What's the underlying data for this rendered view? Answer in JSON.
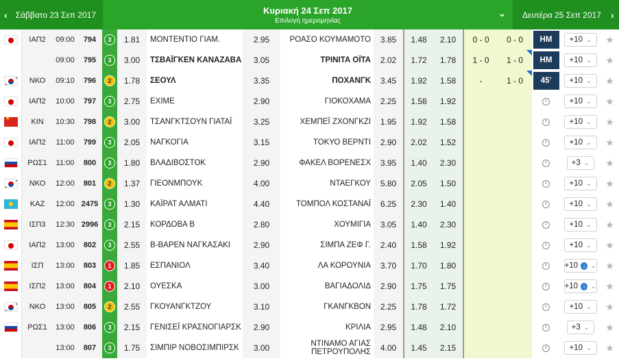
{
  "header": {
    "prev_label": "Σάββατο 23 Σεπ 2017",
    "current_label": "Κυριακή 24 Σεπ 2017",
    "current_sub": "Επιλογή ημερομηνίας",
    "next_label": "Δευτέρα 25 Σεπ 2017",
    "prev_arrow": "‹",
    "next_arrow": "›",
    "chevron": "⌄"
  },
  "rows": [
    {
      "flag": "jp",
      "league": "ΙΑΠ2",
      "time": "09:00",
      "code": "794",
      "count": "3",
      "odd1": "1.81",
      "home": "ΜΟΝΤΕΝΤΙΟ ΓΙΑΜ.",
      "oddx": "2.95",
      "away": "ΡΟΑΣΟ ΚΟΥΜΑΜΟΤΟ",
      "odd2": "3.85",
      "under": "1.48",
      "over": "2.10",
      "score_ht": "0 - 0",
      "score_ft": "0 - 0",
      "status": "HM",
      "more": "+10",
      "more_dl": false,
      "home_bold": false
    },
    {
      "flag": "",
      "league": "",
      "time": "09:00",
      "code": "795",
      "count": "3",
      "odd1": "3.00",
      "home": "ΤΣΒΑΪΓΚΕΝ ΚΑΝΑΖΑΒΑ",
      "oddx": "3.05",
      "away": "ΤΡΙΝΙΤΑ ΟΪΤΑ",
      "odd2": "2.02",
      "under": "1.72",
      "over": "1.78",
      "score_ht": "1 - 0",
      "score_ft": "1 - 0",
      "status": "HM",
      "more": "+10",
      "more_dl": false,
      "home_bold": true
    },
    {
      "flag": "kr",
      "league": "ΝΚΟ",
      "time": "09:10",
      "code": "796",
      "count": "2",
      "odd1": "1.78",
      "home": "ΣΕΟΥΛ",
      "oddx": "3.35",
      "away": "ΠΟΧΑΝΓΚ",
      "odd2": "3.45",
      "under": "1.92",
      "over": "1.58",
      "score_ht": "-",
      "score_ft": "1 - 0",
      "status": "45'",
      "more": "+10",
      "more_dl": false,
      "home_bold": true
    },
    {
      "flag": "jp",
      "league": "ΙΑΠ2",
      "time": "10:00",
      "code": "797",
      "count": "3",
      "odd1": "2.75",
      "home": "ΕΧΙΜΕ",
      "oddx": "2.90",
      "away": "ΓΙΟΚΟΧΑΜΑ",
      "odd2": "2.25",
      "under": "1.58",
      "over": "1.92",
      "score_ht": "",
      "score_ft": "",
      "status": "",
      "more": "+10",
      "more_dl": false,
      "home_bold": false
    },
    {
      "flag": "cn",
      "league": "ΚΙΝ",
      "time": "10:30",
      "code": "798",
      "count": "2",
      "odd1": "3.00",
      "home": "ΤΣΑΝΓΚΤΣΟΥΝ ΓΙΑΤΑΪ",
      "oddx": "3.25",
      "away": "ΧΕΜΠΕΪ ΖΧΟΝΓΚΖΙ",
      "odd2": "1.95",
      "under": "1.92",
      "over": "1.58",
      "score_ht": "",
      "score_ft": "",
      "status": "",
      "more": "+10",
      "more_dl": false,
      "home_bold": false
    },
    {
      "flag": "jp",
      "league": "ΙΑΠ2",
      "time": "11:00",
      "code": "799",
      "count": "3",
      "odd1": "2.05",
      "home": "ΝΑΓΚΟΓΙΑ",
      "oddx": "3.15",
      "away": "ΤΟΚΥΟ ΒΕΡΝΤΙ",
      "odd2": "2.90",
      "under": "2.02",
      "over": "1.52",
      "score_ht": "",
      "score_ft": "",
      "status": "",
      "more": "+10",
      "more_dl": false,
      "home_bold": false
    },
    {
      "flag": "ru",
      "league": "ΡΩΣ1",
      "time": "11:00",
      "code": "800",
      "count": "3",
      "odd1": "1.80",
      "home": "ΒΛΑΔΙΒΟΣΤΟΚ",
      "oddx": "2.90",
      "away": "ΦΑΚΕΛ ΒΟΡΕΝΕΣΧ",
      "odd2": "3.95",
      "under": "1.40",
      "over": "2.30",
      "score_ht": "",
      "score_ft": "",
      "status": "",
      "more": "+3",
      "more_dl": false,
      "home_bold": false
    },
    {
      "flag": "kr",
      "league": "ΝΚΟ",
      "time": "12:00",
      "code": "801",
      "count": "2",
      "odd1": "1.37",
      "home": "ΓΙΕΟΝΜΠΟΥΚ",
      "oddx": "4.00",
      "away": "ΝΤΑΕΓΚΟΥ",
      "odd2": "5.80",
      "under": "2.05",
      "over": "1.50",
      "score_ht": "",
      "score_ft": "",
      "status": "",
      "more": "+10",
      "more_dl": false,
      "home_bold": false
    },
    {
      "flag": "kz",
      "league": "ΚΑΖ",
      "time": "12:00",
      "code": "2475",
      "count": "3",
      "odd1": "1.30",
      "home": "ΚΑΪΡΑΤ ΑΛΜΑΤΙ",
      "oddx": "4.40",
      "away": "ΤΟΜΠΟΛ ΚΟΣΤΑΝΑΪ",
      "odd2": "6.25",
      "under": "2.30",
      "over": "1.40",
      "score_ht": "",
      "score_ft": "",
      "status": "",
      "more": "+10",
      "more_dl": false,
      "home_bold": false
    },
    {
      "flag": "es",
      "league": "ΙΣΠ3",
      "time": "12:30",
      "code": "2996",
      "count": "3",
      "odd1": "2.15",
      "home": "ΚΟΡΔΟΒΑ Β",
      "oddx": "2.80",
      "away": "ΧΟΥΜΙΓΙΑ",
      "odd2": "3.05",
      "under": "1.40",
      "over": "2.30",
      "score_ht": "",
      "score_ft": "",
      "status": "",
      "more": "+10",
      "more_dl": false,
      "home_bold": false
    },
    {
      "flag": "jp",
      "league": "ΙΑΠ2",
      "time": "13:00",
      "code": "802",
      "count": "3",
      "odd1": "2.55",
      "home": "Β-ΒΑΡΕΝ ΝΑΓΚΑΣΑΚΙ",
      "oddx": "2.90",
      "away": "ΣΙΜΠΑ ΖΕΦ Γ.",
      "odd2": "2.40",
      "under": "1.58",
      "over": "1.92",
      "score_ht": "",
      "score_ft": "",
      "status": "",
      "more": "+10",
      "more_dl": false,
      "home_bold": false
    },
    {
      "flag": "es",
      "league": "ΙΣΠ",
      "time": "13:00",
      "code": "803",
      "count": "1",
      "odd1": "1.85",
      "home": "ΕΣΠΑΝΙΟΛ",
      "oddx": "3.40",
      "away": "ΛΑ ΚΟΡΟΥΝΙΑ",
      "odd2": "3.70",
      "under": "1.70",
      "over": "1.80",
      "score_ht": "",
      "score_ft": "",
      "status": "",
      "more": "+10",
      "more_dl": true,
      "home_bold": false
    },
    {
      "flag": "es",
      "league": "ΙΣΠ2",
      "time": "13:00",
      "code": "804",
      "count": "1",
      "odd1": "2.10",
      "home": "ΟΥΕΣΚΑ",
      "oddx": "3.00",
      "away": "ΒΑΓΙΑΔΟΛΙΔ",
      "odd2": "2.90",
      "under": "1.75",
      "over": "1.75",
      "score_ht": "",
      "score_ft": "",
      "status": "",
      "more": "+10",
      "more_dl": true,
      "home_bold": false
    },
    {
      "flag": "kr",
      "league": "ΝΚΟ",
      "time": "13:00",
      "code": "805",
      "count": "2",
      "odd1": "2.55",
      "home": "ΓΚΟΥΑΝΓΚΤΖΟΥ",
      "oddx": "3.10",
      "away": "ΓΚΑΝΓΚΒΟΝ",
      "odd2": "2.25",
      "under": "1.78",
      "over": "1.72",
      "score_ht": "",
      "score_ft": "",
      "status": "",
      "more": "+10",
      "more_dl": false,
      "home_bold": false
    },
    {
      "flag": "ru",
      "league": "ΡΩΣ1",
      "time": "13:00",
      "code": "806",
      "count": "3",
      "odd1": "2.15",
      "home": "ΓΕΝΙΣΕΪ ΚΡΑΣΝΟΓΙΑΡΣΚ",
      "oddx": "2.90",
      "away": "ΚΡΙΛΙΑ",
      "odd2": "2.95",
      "under": "1.48",
      "over": "2.10",
      "score_ht": "",
      "score_ft": "",
      "status": "",
      "more": "+3",
      "more_dl": false,
      "home_bold": false
    },
    {
      "flag": "",
      "league": "",
      "time": "13:00",
      "code": "807",
      "count": "3",
      "odd1": "1.75",
      "home": "ΣΙΜΠΙΡ ΝΟΒΟΣΙΜΠΙΡΣΚ",
      "oddx": "3.00",
      "away": "ΝΤΙΝΑΜΟ ΑΓΙΑΣ ΠΕΤΡΟΥΠΟΛΗΣ",
      "odd2": "4.00",
      "under": "1.45",
      "over": "2.15",
      "score_ht": "",
      "score_ft": "",
      "status": "",
      "more": "+10",
      "more_dl": false,
      "home_bold": false
    }
  ],
  "icons": {
    "star": "★",
    "dropdown": "⌄",
    "download": "↓",
    "ft_marker_rows": [
      1,
      2
    ]
  },
  "colors": {
    "header_green": "#2aa52a",
    "header_dark_green": "#1f8f1f",
    "live_navy": "#1d3b5a",
    "score_yellow": "#f0f8cf",
    "badge_green": "#2aa52a",
    "badge_yellow": "#f2c200",
    "badge_red": "#e02020"
  }
}
